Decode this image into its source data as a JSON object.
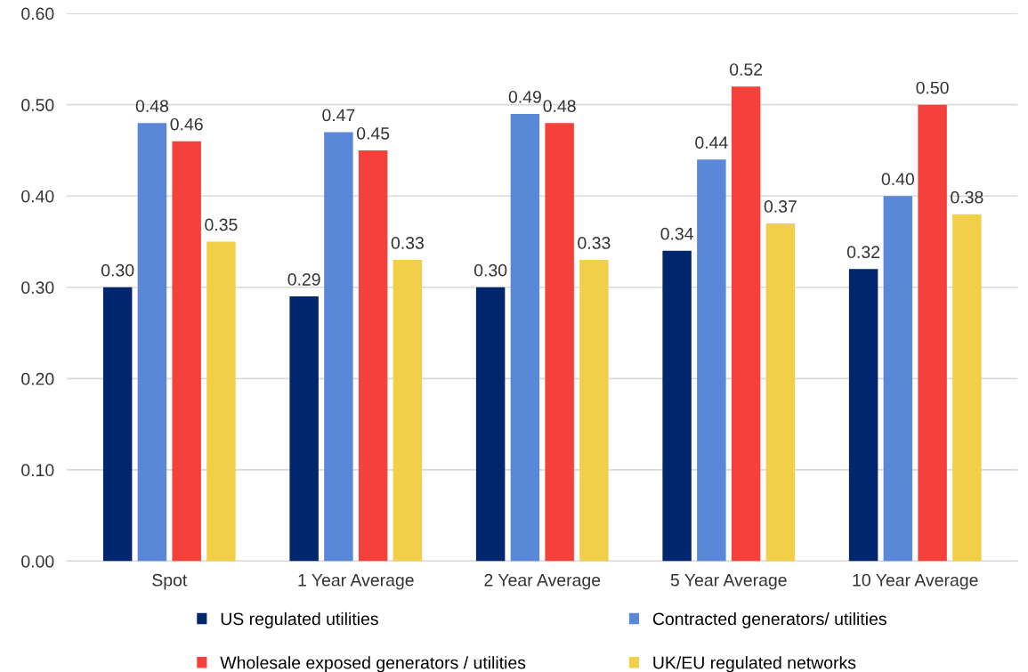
{
  "chart_data": {
    "type": "bar",
    "categories": [
      "Spot",
      "1 Year Average",
      "2 Year Average",
      "5 Year Average",
      "10 Year Average"
    ],
    "series": [
      {
        "name": "US regulated utilities",
        "color": "#00266e",
        "values": [
          0.3,
          0.29,
          0.3,
          0.34,
          0.32
        ],
        "value_labels": [
          "0.30",
          "0.29",
          "0.30",
          "0.34",
          "0.32"
        ]
      },
      {
        "name": "Contracted generators/ utilities",
        "color": "#5b87d9",
        "values": [
          0.48,
          0.47,
          0.49,
          0.44,
          0.4
        ],
        "value_labels": [
          "0.48",
          "0.47",
          "0.49",
          "0.44",
          "0.40"
        ]
      },
      {
        "name": "Wholesale exposed generators / utilities",
        "color": "#f5413b",
        "values": [
          0.46,
          0.45,
          0.48,
          0.52,
          0.5
        ],
        "value_labels": [
          "0.46",
          "0.45",
          "0.48",
          "0.52",
          "0.50"
        ]
      },
      {
        "name": "UK/EU regulated networks",
        "color": "#f2cf48",
        "values": [
          0.35,
          0.33,
          0.33,
          0.37,
          0.38
        ],
        "value_labels": [
          "0.35",
          "0.33",
          "0.33",
          "0.37",
          "0.38"
        ]
      }
    ],
    "ylim": [
      0,
      0.6
    ],
    "yticks": [
      {
        "value": 0,
        "label": "0.00"
      },
      {
        "value": 0.1,
        "label": "0.10"
      },
      {
        "value": 0.2,
        "label": "0.20"
      },
      {
        "value": 0.3,
        "label": "0.30"
      },
      {
        "value": 0.4,
        "label": "0.40"
      },
      {
        "value": 0.5,
        "label": "0.50"
      },
      {
        "value": 0.6,
        "label": "0.60"
      }
    ],
    "grid": "y",
    "legend": "bottom"
  }
}
